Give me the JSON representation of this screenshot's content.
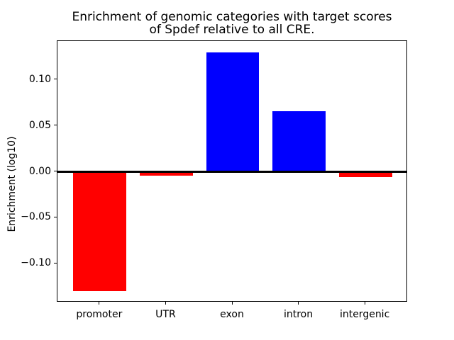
{
  "figure": {
    "title_line1": "Enrichment of genomic categories with target scores",
    "title_line2": "of Spdef relative to all CRE.",
    "ylabel": "Enrichment (log10)"
  },
  "chart_data": {
    "type": "bar",
    "title": "Enrichment of genomic categories with target scores of Spdef relative to all CRE.",
    "xlabel": "",
    "ylabel": "Enrichment (log10)",
    "categories": [
      "promoter",
      "UTR",
      "exon",
      "intron",
      "intergenic"
    ],
    "values": [
      -0.13,
      -0.004,
      0.13,
      0.066,
      -0.006
    ],
    "bar_colors": [
      "#ff0000",
      "#ff0000",
      "#0000ff",
      "#0000ff",
      "#ff0000"
    ],
    "positive_color": "#0000ff",
    "negative_color": "#ff0000",
    "ylim": [
      -0.142,
      0.142
    ],
    "yticks": [
      -0.1,
      -0.05,
      0.0,
      0.05,
      0.1
    ],
    "ytick_labels": [
      "−0.10",
      "−0.05",
      "0.00",
      "0.05",
      "0.10"
    ],
    "zero_line": true,
    "grid": false,
    "legend": null,
    "bar_rel_width": 0.8,
    "x_margin": 0.24
  }
}
